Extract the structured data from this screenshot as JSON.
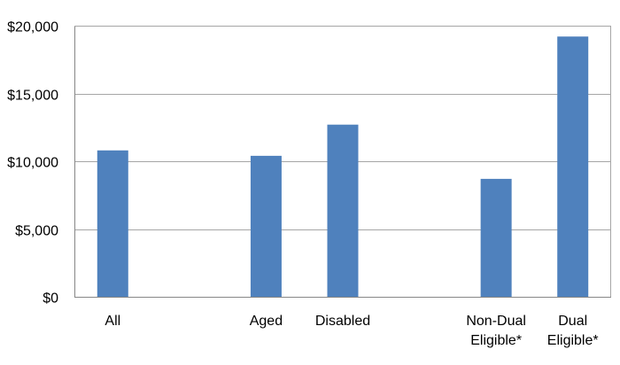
{
  "chart_data": {
    "type": "bar",
    "title": "",
    "xlabel": "",
    "ylabel": "",
    "categories": [
      "All",
      "",
      "Aged",
      "Disabled",
      "",
      "Non-Dual\nEligible*",
      "Dual\nEligible*"
    ],
    "values": [
      10800,
      null,
      10400,
      12700,
      null,
      8700,
      19200
    ],
    "ylim": [
      0,
      20000
    ],
    "yticks": [
      0,
      5000,
      10000,
      15000,
      20000
    ],
    "ytick_labels": [
      "$0",
      "$5,000",
      "$10,000",
      "$15,000",
      "$20,000"
    ],
    "grid": true,
    "legend": "none",
    "colors": {
      "bar": "#4F81BD",
      "grid": "#A6A6A6",
      "axis": "#868686"
    }
  }
}
